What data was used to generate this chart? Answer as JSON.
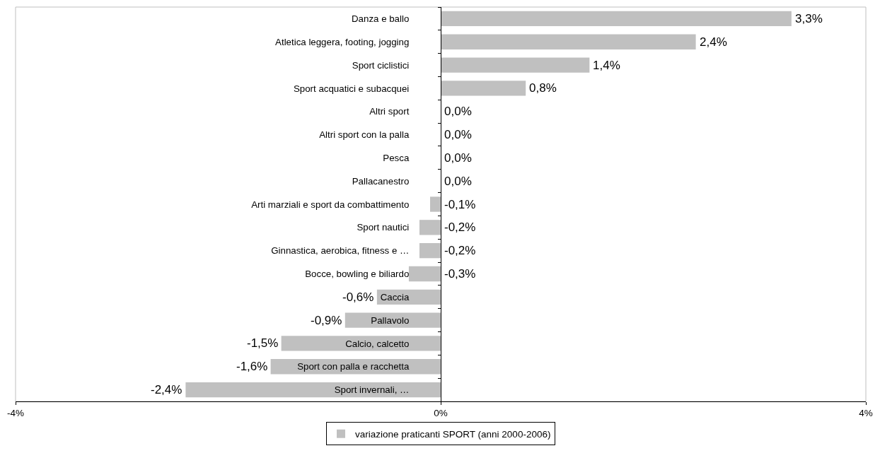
{
  "chart_data": {
    "type": "bar",
    "orientation": "horizontal",
    "categories": [
      "Danza e ballo",
      "Atletica leggera, footing, jogging",
      "Sport ciclistici",
      "Sport acquatici e subacquei",
      "Altri sport",
      "Altri sport con la palla",
      "Pesca",
      "Pallacanestro",
      "Arti marziali e sport da combattimento",
      "Sport nautici",
      "Ginnastica, aerobica, fitness e …",
      "Bocce, bowling e biliardo",
      "Caccia",
      "Pallavolo",
      "Calcio, calcetto",
      "Sport con palla e racchetta",
      "Sport invernali, …"
    ],
    "series": [
      {
        "name": "variazione praticanti SPORT (anni 2000-2006)",
        "color": "#c0c0c0",
        "values": [
          3.3,
          2.4,
          1.4,
          0.8,
          0,
          0,
          0,
          0,
          -0.1,
          -0.2,
          -0.2,
          -0.3,
          -0.6,
          -0.9,
          -1.5,
          -1.6,
          -2.4
        ],
        "value_labels": [
          "3,3%",
          "2,4%",
          "1,4%",
          "0,8%",
          "0,0%",
          "0,0%",
          "0,0%",
          "0,0%",
          "-0,1%",
          "-0,2%",
          "-0,2%",
          "-0,3%",
          "-0,6%",
          "-0,9%",
          "-1,5%",
          "-1,6%",
          "-2,4%"
        ]
      }
    ],
    "xlim": [
      -4,
      4
    ],
    "xticks": [
      {
        "value": -4,
        "label": "-4%"
      },
      {
        "value": 0,
        "label": "0%"
      },
      {
        "value": 4,
        "label": "4%"
      }
    ],
    "legend": "bottom"
  }
}
